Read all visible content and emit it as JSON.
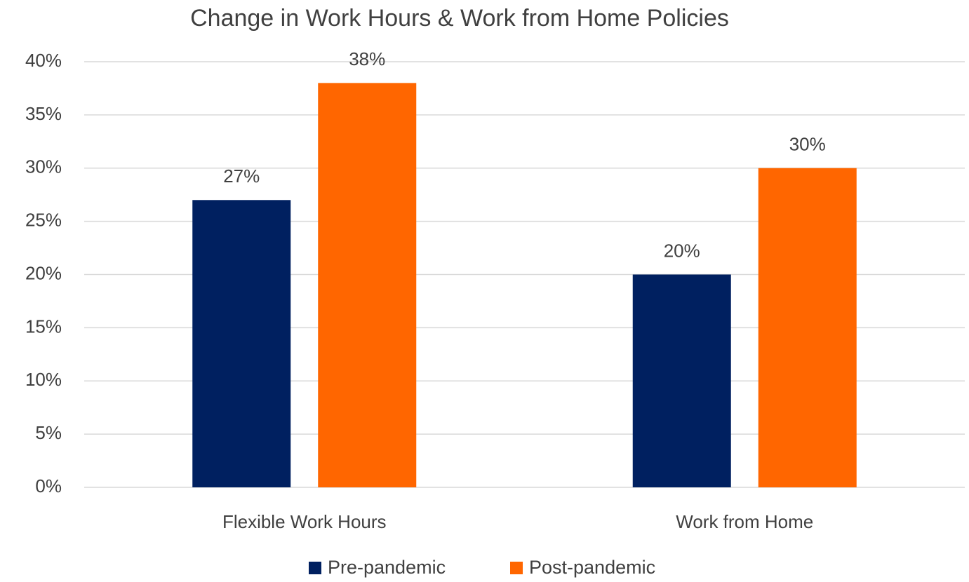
{
  "chart_data": {
    "type": "bar",
    "title": "Change in Work Hours & Work from Home Policies",
    "categories": [
      "Flexible Work Hours",
      "Work from Home"
    ],
    "series": [
      {
        "name": "Pre-pandemic",
        "color": "#002060",
        "values": [
          27,
          20
        ],
        "value_labels": [
          "27%",
          "20%"
        ]
      },
      {
        "name": "Post-pandemic",
        "color": "#ff6600",
        "values": [
          38,
          30
        ],
        "value_labels": [
          "38%",
          "30%"
        ]
      }
    ],
    "ylim": [
      0,
      40
    ],
    "yticks": [
      {
        "value": 0,
        "label": "0%"
      },
      {
        "value": 5,
        "label": "5%"
      },
      {
        "value": 10,
        "label": "10%"
      },
      {
        "value": 15,
        "label": "15%"
      },
      {
        "value": 20,
        "label": "20%"
      },
      {
        "value": 25,
        "label": "25%"
      },
      {
        "value": 30,
        "label": "30%"
      },
      {
        "value": 35,
        "label": "35%"
      },
      {
        "value": 40,
        "label": "40%"
      }
    ],
    "grid": true,
    "legend": "bottom"
  }
}
